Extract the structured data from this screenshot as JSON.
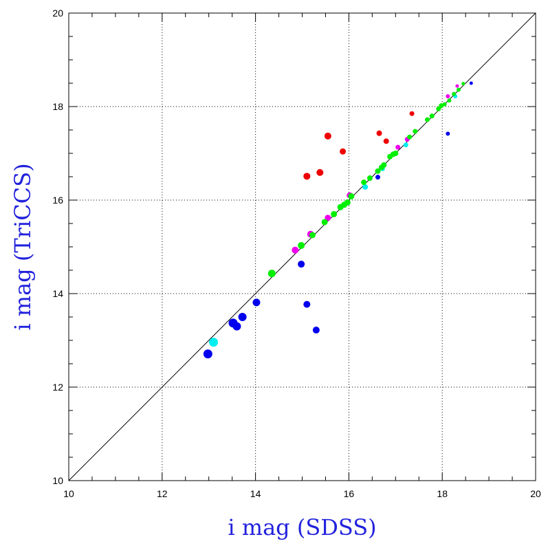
{
  "chart_data": {
    "type": "scatter",
    "title": "",
    "xlabel": "i mag (SDSS)",
    "ylabel": "i mag (TriCCS)",
    "xlim": [
      10,
      20
    ],
    "ylim": [
      10,
      20
    ],
    "x_ticks": [
      10,
      12,
      14,
      16,
      18,
      20
    ],
    "y_ticks": [
      10,
      12,
      14,
      16,
      18,
      20
    ],
    "grid": true,
    "reference_line": {
      "x": [
        10,
        20
      ],
      "y": [
        10,
        20
      ]
    },
    "series": [
      {
        "color": "#0000ee",
        "points": [
          {
            "x": 12.98,
            "y": 12.71,
            "s": 6.5
          },
          {
            "x": 13.52,
            "y": 13.37,
            "s": 6.5
          },
          {
            "x": 13.6,
            "y": 13.3,
            "s": 6.0
          },
          {
            "x": 13.72,
            "y": 13.5,
            "s": 6.0
          },
          {
            "x": 14.02,
            "y": 13.81,
            "s": 5.5
          },
          {
            "x": 14.98,
            "y": 14.63,
            "s": 5.0
          },
          {
            "x": 15.1,
            "y": 13.77,
            "s": 5.0
          },
          {
            "x": 15.3,
            "y": 13.22,
            "s": 5.0
          },
          {
            "x": 16.62,
            "y": 16.49,
            "s": 3.5
          },
          {
            "x": 18.12,
            "y": 17.42,
            "s": 3.0
          },
          {
            "x": 18.62,
            "y": 18.5,
            "s": 2.5
          }
        ]
      },
      {
        "color": "#00eeee",
        "points": [
          {
            "x": 13.1,
            "y": 12.96,
            "s": 6.5
          },
          {
            "x": 16.35,
            "y": 16.28,
            "s": 4.0
          },
          {
            "x": 16.72,
            "y": 16.67,
            "s": 3.5
          },
          {
            "x": 17.22,
            "y": 17.18,
            "s": 3.5
          },
          {
            "x": 18.28,
            "y": 18.22,
            "s": 3.0
          }
        ]
      },
      {
        "color": "#ee0000",
        "points": [
          {
            "x": 15.1,
            "y": 16.51,
            "s": 5.0
          },
          {
            "x": 15.38,
            "y": 16.59,
            "s": 5.0
          },
          {
            "x": 15.55,
            "y": 17.37,
            "s": 5.0
          },
          {
            "x": 15.87,
            "y": 17.04,
            "s": 4.5
          },
          {
            "x": 16.65,
            "y": 17.43,
            "s": 4.0
          },
          {
            "x": 16.8,
            "y": 17.26,
            "s": 4.0
          },
          {
            "x": 17.35,
            "y": 17.85,
            "s": 3.5
          }
        ]
      },
      {
        "color": "#ee00ee",
        "points": [
          {
            "x": 14.85,
            "y": 14.93,
            "s": 5.0
          },
          {
            "x": 15.18,
            "y": 15.27,
            "s": 5.0
          },
          {
            "x": 15.55,
            "y": 15.62,
            "s": 4.5
          },
          {
            "x": 16.02,
            "y": 16.1,
            "s": 4.5
          },
          {
            "x": 17.05,
            "y": 17.13,
            "s": 3.5
          },
          {
            "x": 17.25,
            "y": 17.3,
            "s": 3.5
          },
          {
            "x": 18.12,
            "y": 18.22,
            "s": 3.0
          },
          {
            "x": 18.32,
            "y": 18.44,
            "s": 2.5
          }
        ]
      },
      {
        "color": "#00ee00",
        "points": [
          {
            "x": 14.35,
            "y": 14.43,
            "s": 5.5
          },
          {
            "x": 14.98,
            "y": 15.03,
            "s": 5.0
          },
          {
            "x": 15.22,
            "y": 15.25,
            "s": 4.5
          },
          {
            "x": 15.48,
            "y": 15.53,
            "s": 4.5
          },
          {
            "x": 15.68,
            "y": 15.7,
            "s": 4.5
          },
          {
            "x": 15.82,
            "y": 15.85,
            "s": 4.5
          },
          {
            "x": 15.9,
            "y": 15.9,
            "s": 4.5
          },
          {
            "x": 15.97,
            "y": 15.95,
            "s": 4.5
          },
          {
            "x": 16.05,
            "y": 16.08,
            "s": 4.5
          },
          {
            "x": 16.32,
            "y": 16.38,
            "s": 4.0
          },
          {
            "x": 16.45,
            "y": 16.47,
            "s": 4.0
          },
          {
            "x": 16.62,
            "y": 16.62,
            "s": 4.0
          },
          {
            "x": 16.7,
            "y": 16.7,
            "s": 4.0
          },
          {
            "x": 16.75,
            "y": 16.75,
            "s": 4.0
          },
          {
            "x": 16.88,
            "y": 16.93,
            "s": 4.0
          },
          {
            "x": 16.95,
            "y": 16.98,
            "s": 4.0
          },
          {
            "x": 17.0,
            "y": 17.0,
            "s": 4.0
          },
          {
            "x": 17.3,
            "y": 17.35,
            "s": 3.5
          },
          {
            "x": 17.42,
            "y": 17.47,
            "s": 3.5
          },
          {
            "x": 17.68,
            "y": 17.72,
            "s": 3.5
          },
          {
            "x": 17.78,
            "y": 17.8,
            "s": 3.5
          },
          {
            "x": 17.92,
            "y": 17.95,
            "s": 3.5
          },
          {
            "x": 17.98,
            "y": 18.02,
            "s": 3.5
          },
          {
            "x": 18.05,
            "y": 18.05,
            "s": 3.0
          },
          {
            "x": 18.15,
            "y": 18.13,
            "s": 3.0
          },
          {
            "x": 18.25,
            "y": 18.27,
            "s": 3.0
          },
          {
            "x": 18.35,
            "y": 18.36,
            "s": 3.0
          },
          {
            "x": 18.45,
            "y": 18.49,
            "s": 2.5
          }
        ]
      }
    ]
  }
}
